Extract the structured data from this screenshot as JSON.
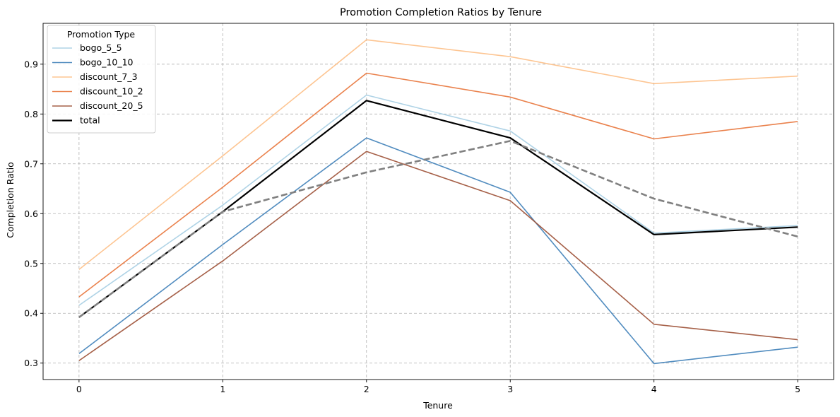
{
  "chart_data": {
    "type": "line",
    "title": "Promotion Completion Ratios by Tenure",
    "xlabel": "Tenure",
    "ylabel": "Completion Ratio",
    "x": [
      0,
      1,
      2,
      3,
      4,
      5
    ],
    "xlim": [
      -0.25,
      5.25
    ],
    "ylim": [
      0.267,
      0.982
    ],
    "yticks": [
      0.3,
      0.4,
      0.5,
      0.6,
      0.7,
      0.8,
      0.9
    ],
    "grid": true,
    "legend": {
      "title": "Promotion Type",
      "placement": "top-left"
    },
    "series": [
      {
        "name": "bogo_5_5",
        "values": [
          0.416,
          0.617,
          0.838,
          0.766,
          0.561,
          0.576
        ],
        "color": "#a6cee3",
        "style": "solid"
      },
      {
        "name": "bogo_10_10",
        "values": [
          0.319,
          0.538,
          0.752,
          0.643,
          0.299,
          0.332
        ],
        "color": "#3e7fb8",
        "style": "solid"
      },
      {
        "name": "discount_7_3",
        "values": [
          0.488,
          0.716,
          0.949,
          0.915,
          0.861,
          0.876
        ],
        "color": "#fdbf86",
        "style": "solid"
      },
      {
        "name": "discount_10_2",
        "values": [
          0.433,
          0.653,
          0.882,
          0.834,
          0.75,
          0.785
        ],
        "color": "#e8743a",
        "style": "solid"
      },
      {
        "name": "discount_20_5",
        "values": [
          0.305,
          0.505,
          0.725,
          0.626,
          0.378,
          0.347
        ],
        "color": "#9c4f34",
        "style": "solid"
      },
      {
        "name": "total",
        "values": [
          0.392,
          0.604,
          0.827,
          0.752,
          0.558,
          0.573
        ],
        "color": "#000000",
        "style": "solid-thick"
      },
      {
        "values": [
          0.392,
          0.604,
          0.683,
          0.746,
          0.63,
          0.554
        ],
        "color": "#808080",
        "style": "dashed"
      }
    ]
  }
}
